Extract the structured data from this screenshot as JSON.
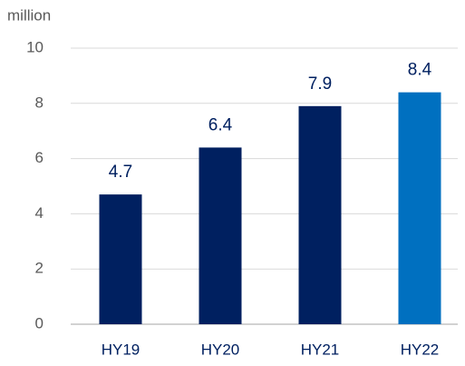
{
  "chart_data": {
    "type": "bar",
    "y_axis_label": "million",
    "categories": [
      "HY19",
      "HY20",
      "HY21",
      "HY22"
    ],
    "values": [
      4.7,
      6.4,
      7.9,
      8.4
    ],
    "colors": [
      "#002060",
      "#002060",
      "#002060",
      "#0070c0"
    ],
    "ylim": [
      0,
      10
    ],
    "yticks": [
      0,
      2,
      4,
      6,
      8,
      10
    ],
    "grid": true
  }
}
